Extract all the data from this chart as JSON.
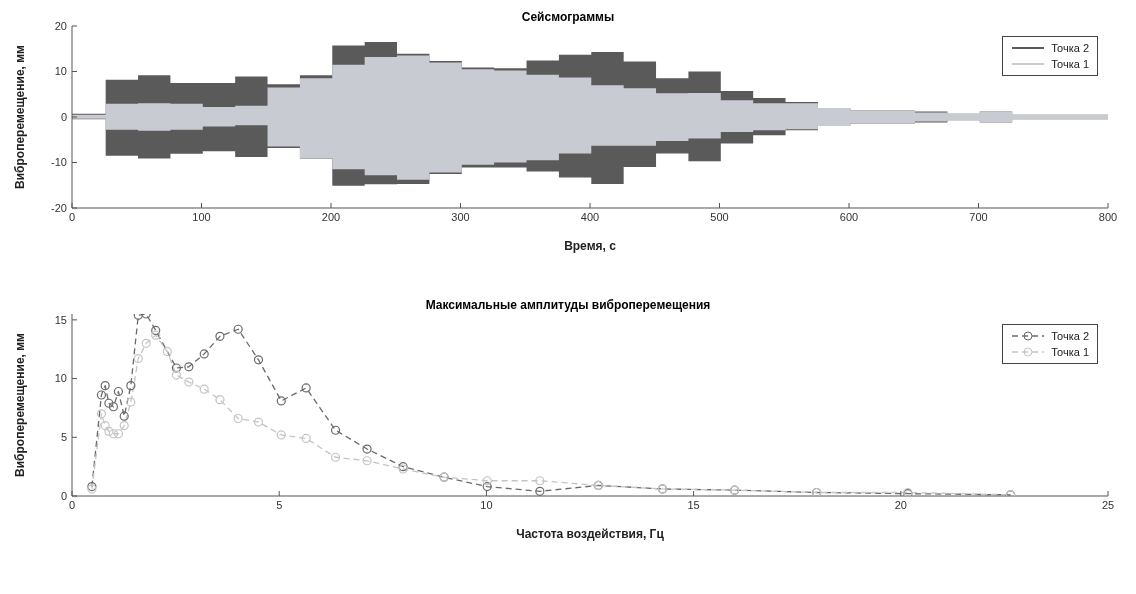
{
  "chart_data": [
    {
      "type": "area",
      "title": "Сейсмограммы",
      "xlabel": "Время, с",
      "ylabel": "Виброперемещение, мм",
      "xlim": [
        0,
        800
      ],
      "xticks": [
        0,
        100,
        200,
        300,
        400,
        500,
        600,
        700,
        800
      ],
      "ylim": [
        -20,
        20
      ],
      "yticks": [
        -20,
        -10,
        0,
        10,
        20
      ],
      "grid": false,
      "legend": "top right",
      "series": [
        {
          "name": "Точка 2",
          "color": "#5a5a5a",
          "x": [
            0,
            26,
            51,
            76,
            101,
            126,
            151,
            176,
            201,
            226,
            251,
            276,
            301,
            326,
            351,
            376,
            401,
            426,
            451,
            476,
            501,
            526,
            551,
            576,
            601,
            626,
            651,
            676,
            701,
            726,
            751,
            776,
            800
          ],
          "values": [
            0.7,
            8.2,
            9.2,
            7.5,
            7.5,
            8.9,
            7.2,
            9.2,
            15.7,
            16.5,
            13.9,
            12.3,
            10.9,
            10.7,
            12.4,
            13.7,
            14.3,
            12.2,
            8.5,
            10,
            5.7,
            4.2,
            3.3,
            2,
            1.5,
            1.5,
            1.2,
            0.7,
            1.2,
            0.5,
            0.5,
            0.5,
            0.5
          ]
        },
        {
          "color": "#5a5a5a",
          "x": [
            0,
            26,
            51,
            76,
            101,
            126,
            151,
            176,
            201,
            226,
            251,
            276,
            301,
            326,
            351,
            376,
            401,
            426,
            451,
            476,
            501,
            526,
            551,
            576,
            601,
            626,
            651,
            676,
            701,
            726,
            751,
            776,
            800
          ],
          "values": [
            -0.5,
            -8.5,
            -9.1,
            -8.1,
            -7.5,
            -8.8,
            -6.8,
            -9.1,
            -15.1,
            -14.8,
            -14.7,
            -12.5,
            -11.1,
            -11.1,
            -12,
            -13.3,
            -14.7,
            -11,
            -8,
            -9.7,
            -5.8,
            -4,
            -2.9,
            -2,
            -1.5,
            -1.5,
            -1.2,
            -0.7,
            -1.2,
            -0.5,
            -0.5,
            -0.5,
            -0.5
          ]
        },
        {
          "name": "Точка 1",
          "color": "#c9cbd2",
          "x": [
            0,
            26,
            51,
            76,
            101,
            126,
            151,
            176,
            201,
            226,
            251,
            276,
            301,
            326,
            351,
            376,
            401,
            426,
            451,
            476,
            501,
            526,
            551,
            576,
            601,
            626,
            651,
            676,
            701,
            726,
            751,
            776,
            800
          ],
          "values": [
            0.5,
            2.9,
            3,
            2.9,
            2.2,
            2.5,
            6.5,
            8.5,
            11.5,
            13.2,
            13.5,
            12,
            10.5,
            10.2,
            9.3,
            8.7,
            7,
            6.3,
            5.2,
            5.3,
            3.7,
            3,
            3,
            2,
            1.5,
            1.5,
            1,
            0.7,
            1.2,
            0.5,
            0.5,
            0.5,
            0.5
          ]
        },
        {
          "color": "#c9cbd2",
          "x": [
            0,
            26,
            51,
            76,
            101,
            126,
            151,
            176,
            201,
            226,
            251,
            276,
            301,
            326,
            351,
            376,
            401,
            426,
            451,
            476,
            501,
            526,
            551,
            576,
            601,
            626,
            651,
            676,
            701,
            726,
            751,
            776,
            800
          ],
          "values": [
            -0.4,
            -2.8,
            -3,
            -2.8,
            -2.1,
            -1.8,
            -6.5,
            -9,
            -11.5,
            -12.8,
            -13.8,
            -12.2,
            -10.5,
            -10,
            -9.5,
            -8,
            -6.3,
            -6.3,
            -5.3,
            -4.7,
            -3.3,
            -2.9,
            -2.7,
            -2,
            -1.5,
            -1.5,
            -1,
            -0.7,
            -1.2,
            -0.5,
            -0.5,
            -0.5,
            -0.5
          ]
        }
      ]
    },
    {
      "type": "line",
      "title": "Максимальные амплитуды виброперемещения",
      "xlabel": "Частота воздействия, Гц",
      "ylabel": "Виброперемещение, мм",
      "xlim": [
        0,
        25
      ],
      "xticks": [
        0,
        5,
        10,
        15,
        20,
        25
      ],
      "ylim": [
        0,
        15.5
      ],
      "yticks": [
        0,
        5,
        10,
        15
      ],
      "grid": false,
      "legend": "top right",
      "marker": "circle",
      "line_style": "dashed",
      "series": [
        {
          "name": "Точка 2",
          "color": "#6a6a6a",
          "x": [
            0.48,
            0.71,
            0.8,
            0.89,
            1.0,
            1.12,
            1.26,
            1.42,
            1.6,
            1.79,
            2.02,
            2.52,
            2.82,
            3.19,
            3.57,
            4.01,
            4.5,
            5.05,
            5.65,
            6.36,
            7.12,
            7.99,
            8.98,
            10.02,
            11.29,
            12.7,
            14.25,
            15.99,
            17.97,
            20.17,
            22.65
          ],
          "values": [
            0.8,
            8.6,
            9.4,
            7.9,
            7.6,
            8.9,
            6.8,
            9.4,
            15.4,
            15.5,
            14.1,
            10.9,
            11,
            12.1,
            13.6,
            14.2,
            11.6,
            8.1,
            9.2,
            5.6,
            4,
            2.5,
            1.6,
            0.8,
            0.4,
            0.9,
            0.6,
            0.5,
            0.3,
            0.2,
            0.1
          ]
        },
        {
          "name": "Точка 1",
          "color": "#c4c4c4",
          "x": [
            0.48,
            0.71,
            0.8,
            0.89,
            1.0,
            1.12,
            1.26,
            1.42,
            1.6,
            1.79,
            2.02,
            2.3,
            2.52,
            2.82,
            3.19,
            3.57,
            4.01,
            4.5,
            5.05,
            5.65,
            6.36,
            7.12,
            7.99,
            8.98,
            10.02,
            11.29,
            12.7,
            14.25,
            15.99,
            17.97,
            20.17,
            22.65
          ],
          "values": [
            0.6,
            7,
            6,
            5.5,
            5.3,
            5.3,
            6,
            8,
            11.7,
            13,
            13.7,
            12.3,
            10.3,
            9.7,
            9.1,
            8.2,
            6.6,
            6.3,
            5.2,
            4.9,
            3.3,
            3,
            2.3,
            1.6,
            1.3,
            1.3,
            0.9,
            0.6,
            0.5,
            0.3,
            0.3,
            0.1
          ]
        }
      ]
    }
  ]
}
